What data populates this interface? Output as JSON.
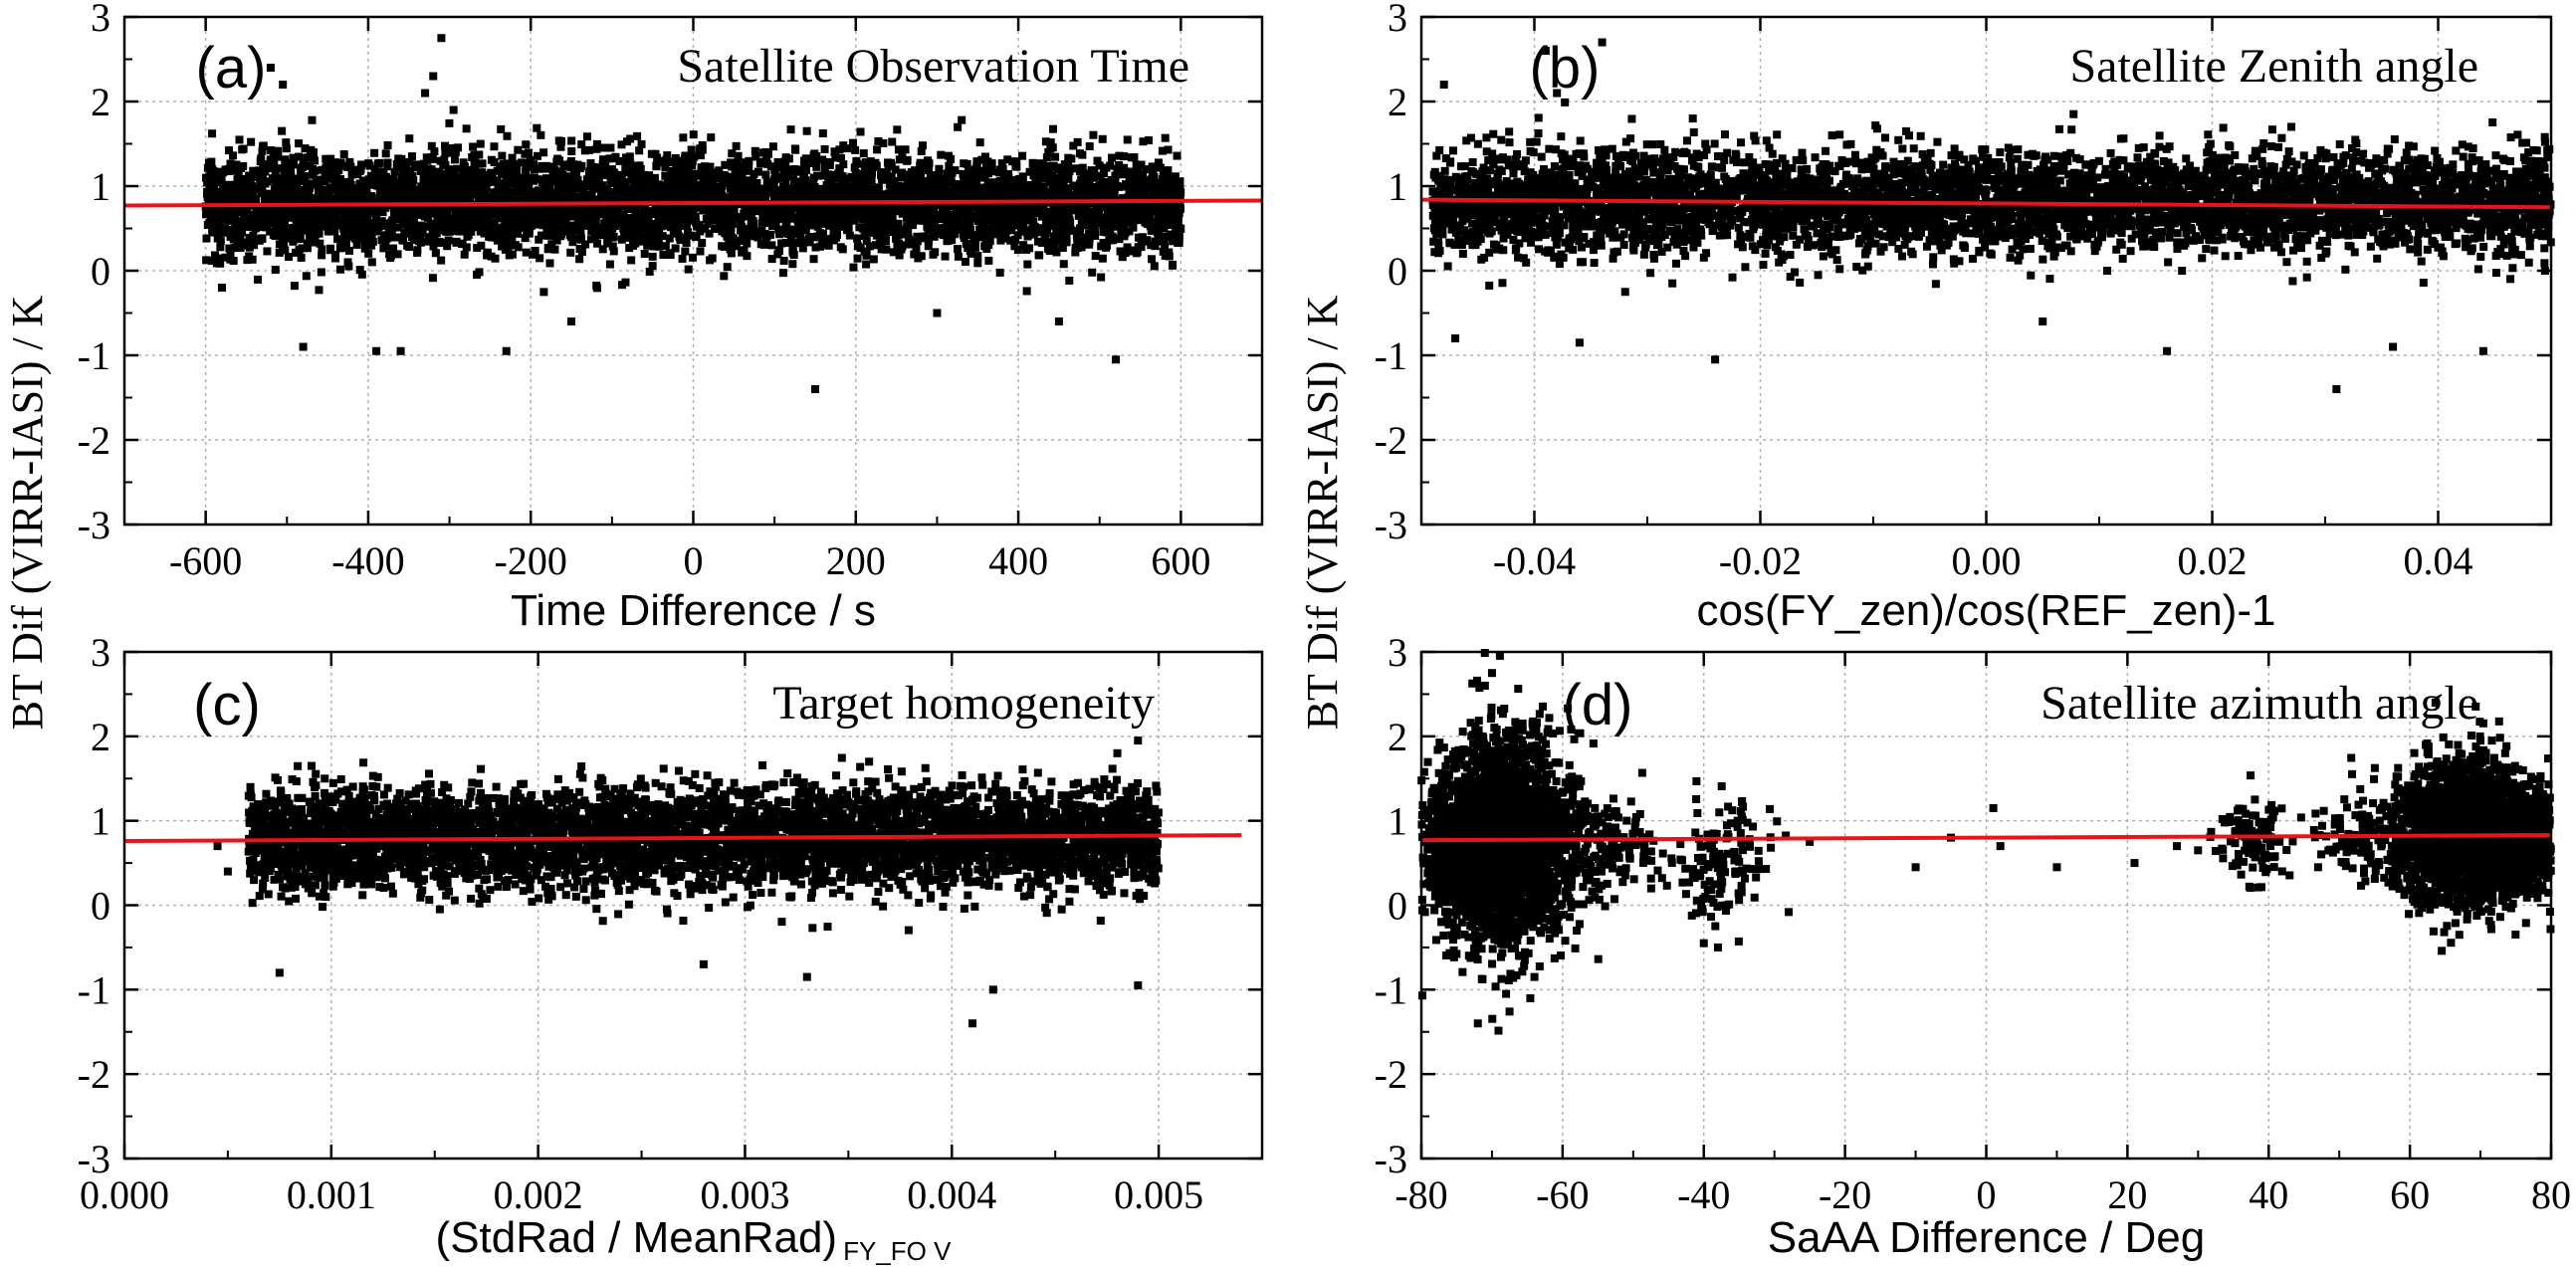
{
  "colors": {
    "points": "#000000",
    "fit_line": "#e8141c",
    "grid": "#b0b0b0",
    "axes": "#000000"
  },
  "ylabel_left": "BT Dif (VIRR-IASI) / K",
  "ylabel_right": "BT Dif (VIRR-IASI) / K",
  "chart_data": [
    {
      "type": "scatter",
      "panel": "(a)",
      "title": "Satellite Observation Time",
      "xlabel": "Time Difference / s",
      "xlabel_sub": "",
      "ylabel": "BT Dif (VIRR-IASI) / K",
      "xlim": [
        -700,
        700
      ],
      "ylim": [
        -3,
        3
      ],
      "x_ticks": [
        -600,
        -400,
        -200,
        0,
        200,
        400,
        600
      ],
      "x_tick_labels": [
        "-600",
        "-400",
        "-200",
        "0",
        "200",
        "400",
        "600"
      ],
      "y_ticks": [
        -3,
        -2,
        -1,
        0,
        1,
        2,
        3
      ],
      "y_tick_labels": [
        "-3",
        "-2",
        "-1",
        "0",
        "1",
        "2",
        "3"
      ],
      "grid": true,
      "point_x_range": [
        -600,
        600
      ],
      "point_y_center": 0.8,
      "point_y_spread": 0.35,
      "point_density": "uniform",
      "sparse_points": [
        [
          -520,
          2.4
        ],
        [
          -505,
          2.2
        ],
        [
          -310,
          2.75
        ],
        [
          -320,
          2.3
        ],
        [
          -330,
          2.1
        ],
        [
          -295,
          1.9
        ],
        [
          -480,
          -0.9
        ],
        [
          -390,
          -0.95
        ],
        [
          -360,
          -0.95
        ],
        [
          -230,
          -0.95
        ],
        [
          150,
          -1.4
        ],
        [
          520,
          -1.05
        ],
        [
          450,
          -0.6
        ],
        [
          -580,
          -0.2
        ],
        [
          300,
          -0.5
        ],
        [
          -150,
          -0.6
        ]
      ],
      "fit_line": {
        "x": [
          -700,
          700
        ],
        "y": [
          0.77,
          0.83
        ]
      }
    },
    {
      "type": "scatter",
      "panel": "(b)",
      "title": "Satellite Zenith angle",
      "xlabel": "cos(FY_zen)/cos(REF_zen)-1",
      "xlabel_sub": "",
      "ylabel": "",
      "xlim": [
        -0.05,
        0.05
      ],
      "ylim": [
        -3,
        3
      ],
      "x_ticks": [
        -0.04,
        -0.02,
        0.0,
        0.02,
        0.04
      ],
      "x_tick_labels": [
        "-0.04",
        "-0.02",
        "0.00",
        "0.02",
        "0.04"
      ],
      "y_ticks": [
        -3,
        -2,
        -1,
        0,
        1,
        2,
        3
      ],
      "y_tick_labels": [
        "-3",
        "-2",
        "-1",
        "0",
        "1",
        "2",
        "3"
      ],
      "grid": true,
      "point_x_range": [
        -0.049,
        0.05
      ],
      "point_y_center": 0.8,
      "point_y_spread": 0.35,
      "point_density": "uniform",
      "sparse_points": [
        [
          -0.048,
          2.2
        ],
        [
          -0.039,
          2.6
        ],
        [
          -0.038,
          2.1
        ],
        [
          -0.034,
          2.7
        ],
        [
          -0.024,
          -1.05
        ],
        [
          0.031,
          -1.4
        ],
        [
          0.016,
          -0.95
        ],
        [
          0.036,
          -0.9
        ],
        [
          0.044,
          -0.95
        ],
        [
          -0.047,
          -0.8
        ],
        [
          -0.036,
          -0.85
        ],
        [
          0.005,
          -0.6
        ]
      ],
      "fit_line": {
        "x": [
          -0.05,
          0.05
        ],
        "y": [
          0.84,
          0.75
        ]
      }
    },
    {
      "type": "scatter",
      "panel": "(c)",
      "title": "Target homogeneity",
      "xlabel": "(StdRad / MeanRad)",
      "xlabel_sub": "FY_FO V",
      "ylabel": "BT Dif (VIRR-IASI) / K",
      "xlim": [
        0.0,
        0.0055
      ],
      "ylim": [
        -3,
        3
      ],
      "x_ticks": [
        0.0,
        0.001,
        0.002,
        0.003,
        0.004,
        0.005
      ],
      "x_tick_labels": [
        "0.000",
        "0.001",
        "0.002",
        "0.003",
        "0.004",
        "0.005"
      ],
      "y_ticks": [
        -3,
        -2,
        -1,
        0,
        1,
        2,
        3
      ],
      "y_tick_labels": [
        "-3",
        "-2",
        "-1",
        "0",
        "1",
        "2",
        "3"
      ],
      "grid": true,
      "point_x_range": [
        0.0006,
        0.005
      ],
      "point_y_center": 0.8,
      "point_y_spread": 0.35,
      "point_density": "uniform",
      "sparse_points": [
        [
          0.0005,
          0.4
        ],
        [
          0.00045,
          0.7
        ],
        [
          0.00075,
          -0.8
        ],
        [
          0.0041,
          -1.4
        ],
        [
          0.0042,
          -1.0
        ],
        [
          0.0049,
          -0.95
        ],
        [
          0.0033,
          -0.85
        ],
        [
          0.0049,
          1.95
        ],
        [
          0.0048,
          1.8
        ],
        [
          0.0036,
          1.7
        ],
        [
          0.0028,
          -0.7
        ]
      ],
      "fit_line": {
        "x": [
          0.0,
          0.0054
        ],
        "y": [
          0.76,
          0.83
        ]
      }
    },
    {
      "type": "scatter",
      "panel": "(d)",
      "title": "Satellite azimuth angle",
      "xlabel": "SaAA Difference / Deg",
      "xlabel_sub": "",
      "ylabel": "",
      "xlim": [
        -80,
        80
      ],
      "ylim": [
        -3,
        3
      ],
      "x_ticks": [
        -80,
        -60,
        -40,
        -20,
        0,
        20,
        40,
        60,
        80
      ],
      "x_tick_labels": [
        "-80",
        "-60",
        "-40",
        "-20",
        "0",
        "20",
        "40",
        "60",
        "80"
      ],
      "y_ticks": [
        -3,
        -2,
        -1,
        0,
        1,
        2,
        3
      ],
      "y_tick_labels": [
        "-3",
        "-2",
        "-1",
        "0",
        "1",
        "2",
        "3"
      ],
      "grid": true,
      "clusters": [
        {
          "x_center": -68,
          "x_spread": 4.5,
          "y_center": 0.75,
          "y_spread": 0.6,
          "count": 2600
        },
        {
          "x_center": -75,
          "x_spread": 3,
          "y_center": 0.6,
          "y_spread": 0.35,
          "count": 500
        },
        {
          "x_center": -54,
          "x_spread": 4,
          "y_center": 0.7,
          "y_spread": 0.3,
          "count": 160
        },
        {
          "x_center": -37,
          "x_spread": 3.5,
          "y_center": 0.55,
          "y_spread": 0.35,
          "count": 140
        },
        {
          "x_center": 38,
          "x_spread": 2.5,
          "y_center": 0.75,
          "y_spread": 0.25,
          "count": 120
        },
        {
          "x_center": 52,
          "x_spread": 3,
          "y_center": 0.8,
          "y_spread": 0.25,
          "count": 80
        },
        {
          "x_center": 68,
          "x_spread": 5,
          "y_center": 0.85,
          "y_spread": 0.4,
          "count": 2400
        },
        {
          "x_center": 78,
          "x_spread": 2.5,
          "y_center": 0.8,
          "y_spread": 0.3,
          "count": 400
        }
      ],
      "sparse_points": [
        [
          -70,
          2.75
        ],
        [
          -71,
          2.6
        ],
        [
          -72,
          -1.4
        ],
        [
          -68,
          -1.05
        ],
        [
          -38,
          -0.5
        ],
        [
          -40,
          -0.45
        ],
        [
          -25,
          0.75
        ],
        [
          -10,
          0.45
        ],
        [
          -5,
          0.8
        ],
        [
          1,
          1.15
        ],
        [
          2,
          0.7
        ],
        [
          10,
          0.45
        ],
        [
          21,
          0.5
        ],
        [
          27,
          0.7
        ],
        [
          30,
          0.65
        ],
        [
          47,
          0.45
        ],
        [
          70,
          1.95
        ],
        [
          67,
          -0.35
        ],
        [
          -58,
          -0.3
        ]
      ],
      "fit_line": {
        "x": [
          -80,
          80
        ],
        "y": [
          0.77,
          0.83
        ]
      }
    }
  ]
}
